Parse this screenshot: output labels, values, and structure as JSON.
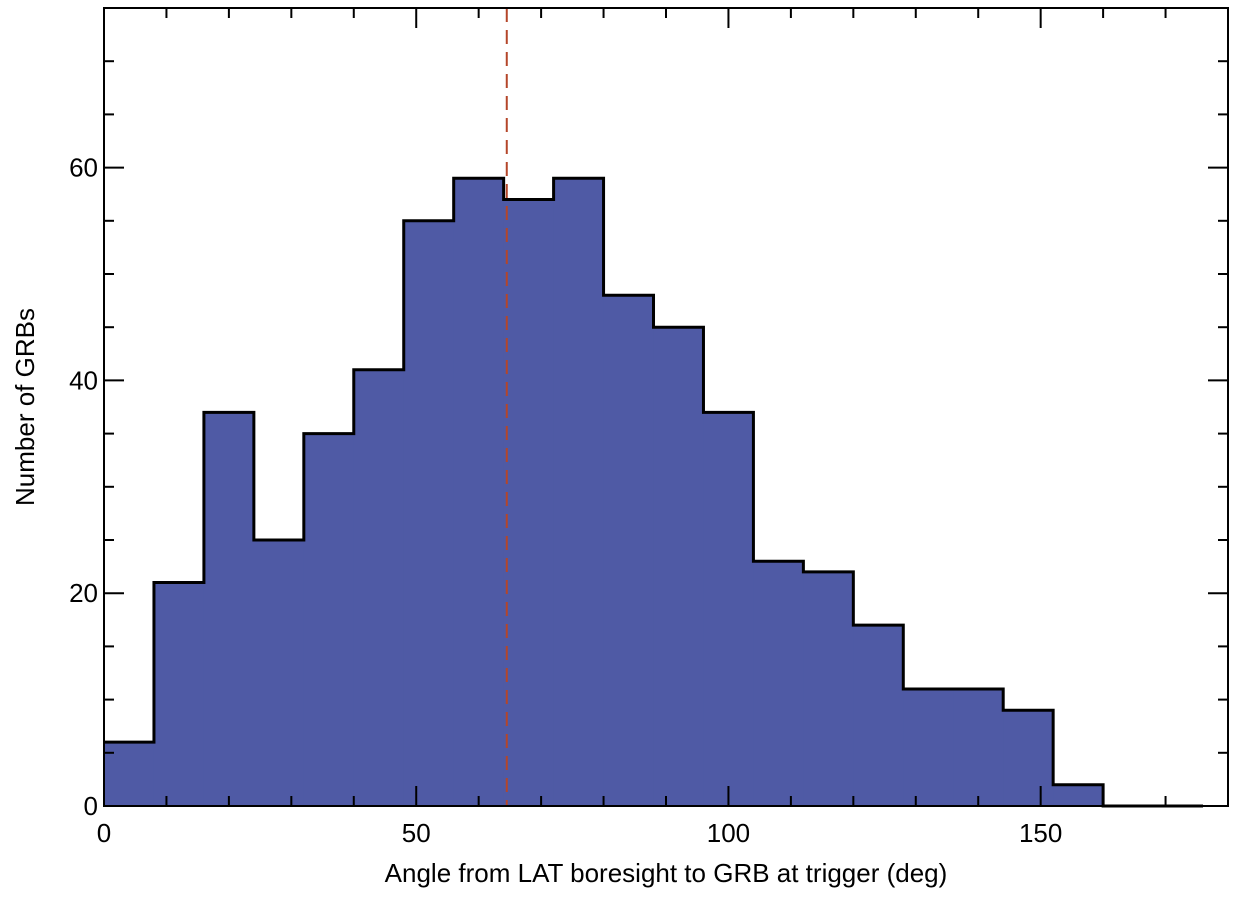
{
  "chart_data": {
    "type": "bar",
    "subtype": "histogram",
    "title": "",
    "xlabel": "Angle from LAT boresight to GRB at trigger (deg)",
    "ylabel": "Number of GRBs",
    "xlim": [
      0,
      180
    ],
    "ylim": [
      0,
      75
    ],
    "bin_width": 8,
    "bin_edges": [
      0,
      8,
      16,
      24,
      32,
      40,
      48,
      56,
      64,
      72,
      80,
      88,
      96,
      104,
      112,
      120,
      128,
      136,
      144,
      152,
      160,
      168,
      176
    ],
    "values": [
      6,
      21,
      37,
      25,
      35,
      41,
      55,
      59,
      57,
      59,
      48,
      45,
      37,
      23,
      22,
      17,
      11,
      11,
      9,
      2,
      0,
      0
    ],
    "xticks": [
      0,
      50,
      100,
      150
    ],
    "xtick_labels": [
      "0",
      "50",
      "100",
      "150"
    ],
    "yticks": [
      0,
      20,
      40,
      60
    ],
    "ytick_labels": [
      "0",
      "20",
      "40",
      "60"
    ],
    "x_minor_step": 10,
    "y_minor_step": 5,
    "reference_line": {
      "x": 64.5,
      "style": "dashed",
      "color": "#b4462a"
    },
    "fill_color": "#4f5aa5",
    "outline_color": "#000000",
    "grid": false,
    "legend": "none"
  }
}
